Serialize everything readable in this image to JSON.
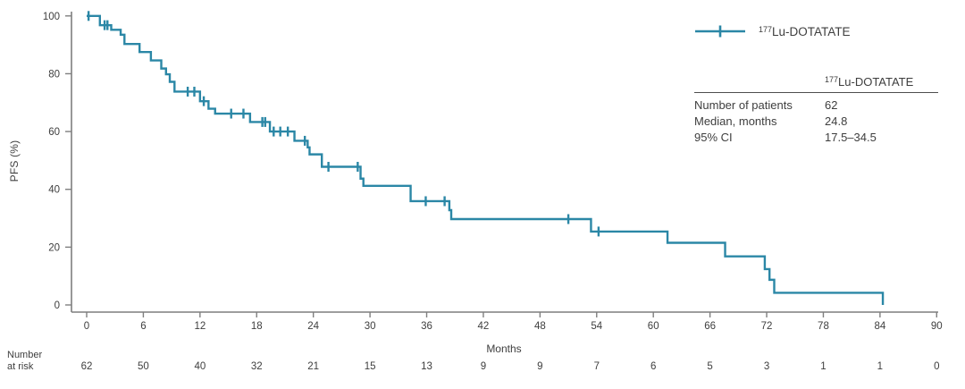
{
  "figure": {
    "legend": {
      "sup": "177",
      "main": "Lu-DOTATATE"
    },
    "stats_table": {
      "header_sup": "177",
      "header_main": "Lu-DOTATATE",
      "rows": [
        {
          "label": "Number of patients",
          "value": "62"
        },
        {
          "label": "Median, months",
          "value": "24.8"
        },
        {
          "label": "95% CI",
          "value": "17.5–34.5"
        }
      ]
    }
  },
  "chart_data": {
    "type": "line",
    "subtype": "kaplan-meier-step",
    "title": "",
    "xlabel": "Months",
    "ylabel": "PFS (%)",
    "xlim": [
      0,
      90
    ],
    "ylim": [
      0,
      100
    ],
    "grid": false,
    "legend_position": "top-right",
    "x_ticks": [
      0,
      6,
      12,
      18,
      24,
      30,
      36,
      42,
      48,
      54,
      60,
      66,
      72,
      78,
      84,
      90
    ],
    "y_ticks": [
      0,
      20,
      40,
      60,
      80,
      100
    ],
    "colors": {
      "curve": "#2b87a6",
      "axis": "#7f7f7f",
      "tick_text": "#3e3e3e"
    },
    "series": [
      {
        "name": "177Lu-DOTATATE",
        "color": "#2b87a6",
        "steps": [
          {
            "t": 0,
            "s": 100
          },
          {
            "t": 1.4,
            "s": 96.8
          },
          {
            "t": 2.6,
            "s": 95.2
          },
          {
            "t": 3.6,
            "s": 93.5
          },
          {
            "t": 4.0,
            "s": 90.3
          },
          {
            "t": 5.6,
            "s": 87.5
          },
          {
            "t": 6.8,
            "s": 84.6
          },
          {
            "t": 7.9,
            "s": 81.8
          },
          {
            "t": 8.4,
            "s": 79.8
          },
          {
            "t": 8.8,
            "s": 77.2
          },
          {
            "t": 9.3,
            "s": 73.8
          },
          {
            "t": 12.0,
            "s": 70.5
          },
          {
            "t": 12.9,
            "s": 67.9
          },
          {
            "t": 13.6,
            "s": 66.2
          },
          {
            "t": 17.3,
            "s": 63.3
          },
          {
            "t": 19.4,
            "s": 60.0
          },
          {
            "t": 22.0,
            "s": 56.8
          },
          {
            "t": 23.4,
            "s": 54.5
          },
          {
            "t": 23.6,
            "s": 52.1
          },
          {
            "t": 24.9,
            "s": 47.8
          },
          {
            "t": 29.0,
            "s": 43.7
          },
          {
            "t": 29.3,
            "s": 41.2
          },
          {
            "t": 34.3,
            "s": 35.9
          },
          {
            "t": 38.4,
            "s": 32.8
          },
          {
            "t": 38.6,
            "s": 29.7
          },
          {
            "t": 53.4,
            "s": 25.4
          },
          {
            "t": 61.5,
            "s": 21.5
          },
          {
            "t": 67.6,
            "s": 16.8
          },
          {
            "t": 71.8,
            "s": 12.4
          },
          {
            "t": 72.3,
            "s": 8.7
          },
          {
            "t": 72.8,
            "s": 4.2
          },
          {
            "t": 84.3,
            "s": 0
          }
        ],
        "censor_marks": [
          {
            "t": 0.2,
            "s": 100
          },
          {
            "t": 1.9,
            "s": 96.8
          },
          {
            "t": 2.2,
            "s": 96.8
          },
          {
            "t": 10.7,
            "s": 73.8
          },
          {
            "t": 11.4,
            "s": 73.8
          },
          {
            "t": 12.4,
            "s": 70.5
          },
          {
            "t": 15.3,
            "s": 66.2
          },
          {
            "t": 16.6,
            "s": 66.2
          },
          {
            "t": 18.6,
            "s": 63.3
          },
          {
            "t": 18.9,
            "s": 63.3
          },
          {
            "t": 19.8,
            "s": 60.0
          },
          {
            "t": 20.5,
            "s": 60.0
          },
          {
            "t": 21.3,
            "s": 60.0
          },
          {
            "t": 23.1,
            "s": 56.8
          },
          {
            "t": 25.6,
            "s": 47.8
          },
          {
            "t": 28.7,
            "s": 47.8
          },
          {
            "t": 35.9,
            "s": 35.9
          },
          {
            "t": 37.9,
            "s": 35.9
          },
          {
            "t": 51.0,
            "s": 29.7
          },
          {
            "t": 54.2,
            "s": 25.4
          }
        ]
      }
    ],
    "number_at_risk": {
      "label_line1": "Number",
      "label_line2": "at risk",
      "times": [
        0,
        6,
        12,
        18,
        24,
        30,
        36,
        42,
        48,
        54,
        60,
        66,
        72,
        78,
        84,
        90
      ],
      "counts": [
        62,
        50,
        40,
        32,
        21,
        15,
        13,
        9,
        9,
        7,
        6,
        5,
        3,
        1,
        1,
        0
      ]
    }
  }
}
